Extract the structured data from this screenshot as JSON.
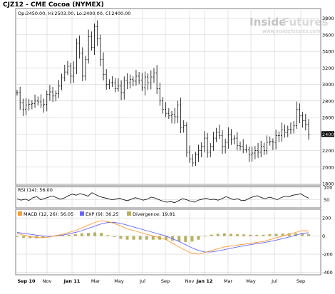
{
  "header": {
    "title": "CJZ12 - CME Cocoa (NYMEX)",
    "ohlc": "Op:2450.00, Hi:2503.00, Lo:2400.00, Cl:2400.00"
  },
  "watermark": {
    "brand_inside": "Inside",
    "brand_futures": "Futures",
    "site": "www.insidefutures.com"
  },
  "colors": {
    "price_bar": "#000000",
    "macd": "#ff9933",
    "exp": "#6666ff",
    "divergence": "#b8b060",
    "grid": "#c8c8c8",
    "panel_border": "#808080"
  },
  "chart_data": [
    {
      "type": "ohlc",
      "panel": "price",
      "y_ticks": [
        1800,
        2000,
        2200,
        2400,
        2600,
        2800,
        3000,
        3200,
        3400,
        3600,
        3800
      ],
      "ylim": [
        1800,
        3900
      ],
      "last_value_label": "2400",
      "x_labels": [
        "Sep 10",
        "Nov",
        "Jan 11",
        "Mar",
        "May",
        "Jul",
        "Sep",
        "Nov",
        "Jan 12",
        "Mar",
        "May",
        "Jul",
        "Sep"
      ],
      "grid": true,
      "close": [
        2900,
        2780,
        2700,
        2750,
        2760,
        2770,
        2800,
        2790,
        2750,
        2760,
        2880,
        2910,
        2860,
        2890,
        2980,
        3080,
        3150,
        3220,
        3100,
        3200,
        3500,
        3380,
        3100,
        3300,
        3580,
        3450,
        3700,
        3550,
        3300,
        3120,
        3000,
        3020,
        3020,
        2950,
        2980,
        2900,
        3050,
        3020,
        3060,
        3040,
        3100,
        3050,
        2960,
        3090,
        3020,
        3090,
        3140,
        2950,
        2800,
        2700,
        2650,
        2620,
        2640,
        2610,
        2750,
        2480,
        2500,
        2180,
        2100,
        2050,
        2150,
        2200,
        2250,
        2350,
        2180,
        2250,
        2350,
        2420,
        2380,
        2250,
        2300,
        2400,
        2340,
        2350,
        2260,
        2250,
        2210,
        2210,
        2150,
        2170,
        2200,
        2180,
        2250,
        2200,
        2300,
        2310,
        2300,
        2380,
        2380,
        2450,
        2420,
        2460,
        2450,
        2500,
        2700,
        2620,
        2560,
        2520,
        2400
      ]
    },
    {
      "type": "line",
      "panel": "rsi",
      "series": [
        {
          "name": "RSI (14): 56.00",
          "values": [
            54,
            48,
            52,
            47,
            58,
            62,
            50,
            55,
            60,
            65,
            58,
            52,
            57,
            66,
            72,
            68,
            74,
            70,
            64,
            78,
            70,
            62,
            58,
            55,
            50,
            52,
            56,
            50,
            46,
            52,
            58,
            54,
            48,
            52,
            60,
            57,
            50,
            44,
            40,
            42,
            38,
            46,
            54,
            50,
            44,
            40,
            48,
            52,
            56,
            50,
            52,
            48,
            54,
            62,
            56,
            50,
            54,
            46,
            48,
            56,
            62,
            66,
            58,
            54,
            60,
            56,
            50,
            58,
            64,
            62,
            68,
            70,
            74,
            64,
            56
          ]
        }
      ],
      "y_ticks": [
        50,
        100
      ],
      "ylim": [
        20,
        100
      ]
    },
    {
      "type": "bar+line",
      "panel": "macd",
      "series": [
        {
          "name": "MACD (12, 26): 56.05",
          "values": [
            30,
            10,
            -5,
            -15,
            -20,
            -10,
            5,
            20,
            40,
            60,
            90,
            120,
            150,
            170,
            160,
            140,
            110,
            80,
            60,
            40,
            20,
            0,
            -20,
            -40,
            -80,
            -120,
            -160,
            -190,
            -200,
            -180,
            -160,
            -140,
            -120,
            -110,
            -100,
            -90,
            -80,
            -70,
            -60,
            -40,
            -20,
            0,
            20,
            40,
            60,
            56
          ]
        },
        {
          "name": "EXP (9): 36.25",
          "values": [
            40,
            30,
            20,
            10,
            0,
            -5,
            0,
            10,
            25,
            40,
            60,
            85,
            110,
            135,
            150,
            150,
            140,
            120,
            100,
            80,
            60,
            40,
            20,
            0,
            -30,
            -60,
            -95,
            -130,
            -160,
            -175,
            -175,
            -165,
            -150,
            -135,
            -120,
            -108,
            -95,
            -84,
            -74,
            -60,
            -45,
            -28,
            -10,
            10,
            28,
            36
          ]
        },
        {
          "name": "Divergence: 19.81",
          "values": [
            -10,
            -20,
            -25,
            -25,
            -20,
            -5,
            5,
            10,
            15,
            20,
            30,
            35,
            40,
            35,
            10,
            -10,
            -30,
            -40,
            -40,
            -40,
            -40,
            -40,
            -40,
            -40,
            -50,
            -60,
            -65,
            -60,
            -40,
            -5,
            15,
            25,
            30,
            25,
            20,
            18,
            15,
            14,
            14,
            20,
            25,
            28,
            30,
            30,
            32,
            20
          ]
        }
      ],
      "y_ticks": [
        -400,
        -200,
        0,
        200
      ],
      "ylim": [
        -420,
        280
      ]
    }
  ]
}
